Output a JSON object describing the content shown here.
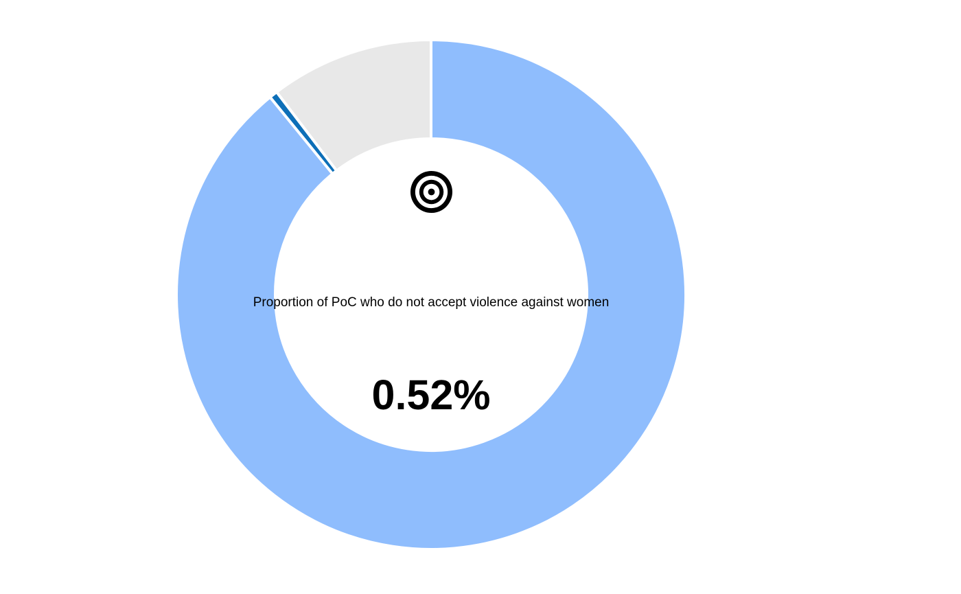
{
  "chart_data": {
    "type": "pie",
    "slices": [
      {
        "value": 89.11,
        "color": "#8fbdfd"
      },
      {
        "value": 0.52,
        "color": "#0d6fb8"
      },
      {
        "value": 10.37,
        "color": "#e8e8e8"
      }
    ],
    "center_caption": "Proportion of PoC  who do not accept violence against women",
    "center_value": "0.52%",
    "icon": "target-icon"
  },
  "colors": {
    "separator": "#ffffff",
    "icon": "#000000"
  }
}
